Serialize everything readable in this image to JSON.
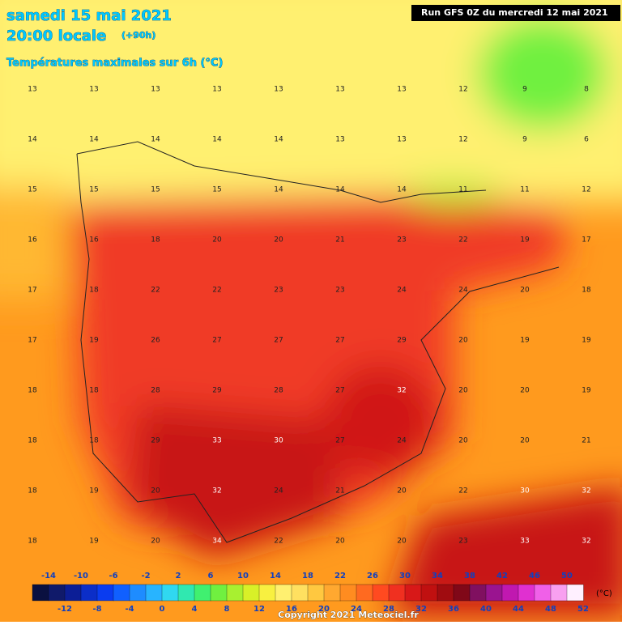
{
  "header": {
    "date": "samedi 15 mai 2021",
    "time": "20:00 locale",
    "lead": "(+90h)",
    "field": "Températures maximales sur 6h (°C)",
    "run": "Run GFS 0Z du mercredi 12 mai 2021"
  },
  "grid": {
    "rows": [
      [
        13,
        13,
        13,
        13,
        13,
        13,
        13,
        12,
        9,
        8
      ],
      [
        14,
        14,
        14,
        14,
        14,
        13,
        13,
        12,
        9,
        6
      ],
      [
        15,
        15,
        15,
        15,
        14,
        14,
        14,
        11,
        11,
        12
      ],
      [
        16,
        16,
        18,
        20,
        20,
        21,
        23,
        22,
        19,
        17
      ],
      [
        17,
        18,
        22,
        22,
        23,
        23,
        24,
        24,
        20,
        18
      ],
      [
        17,
        19,
        26,
        27,
        27,
        27,
        29,
        20,
        19,
        19
      ],
      [
        18,
        18,
        28,
        29,
        28,
        27,
        32,
        20,
        20,
        19
      ],
      [
        18,
        18,
        29,
        33,
        30,
        27,
        24,
        20,
        20,
        21
      ],
      [
        18,
        19,
        20,
        32,
        24,
        21,
        20,
        22,
        30,
        32
      ],
      [
        18,
        19,
        20,
        34,
        22,
        20,
        20,
        23,
        33,
        32
      ]
    ]
  },
  "scale": {
    "unit": "(°C)",
    "lim": [
      -16,
      52
    ],
    "top_ticks": [
      -14,
      -10,
      -6,
      -2,
      2,
      6,
      10,
      14,
      18,
      22,
      26,
      30,
      34,
      38,
      42,
      46,
      50
    ],
    "bottom_ticks": [
      -12,
      -8,
      -4,
      0,
      4,
      8,
      12,
      16,
      20,
      24,
      28,
      32,
      36,
      40,
      44,
      48,
      52
    ],
    "colors": [
      "#0a1040",
      "#101a6a",
      "#0c1e96",
      "#0b2ec8",
      "#0a3cf0",
      "#1060ff",
      "#1e8cff",
      "#28b4ff",
      "#30d8f0",
      "#30e8b0",
      "#40f070",
      "#70f040",
      "#a8f030",
      "#d8f028",
      "#f8f040",
      "#fff070",
      "#ffe060",
      "#ffc840",
      "#ffa830",
      "#ff8c20",
      "#ff6a20",
      "#ff4a20",
      "#f03020",
      "#d81818",
      "#c01010",
      "#a00c10",
      "#800818",
      "#801060",
      "#9a1490",
      "#c018b0",
      "#e030d0",
      "#f060e8",
      "#f8a0f0",
      "#fff0ff"
    ]
  },
  "footer": {
    "copyright": "Copyright 2021 Meteociel.fr"
  }
}
